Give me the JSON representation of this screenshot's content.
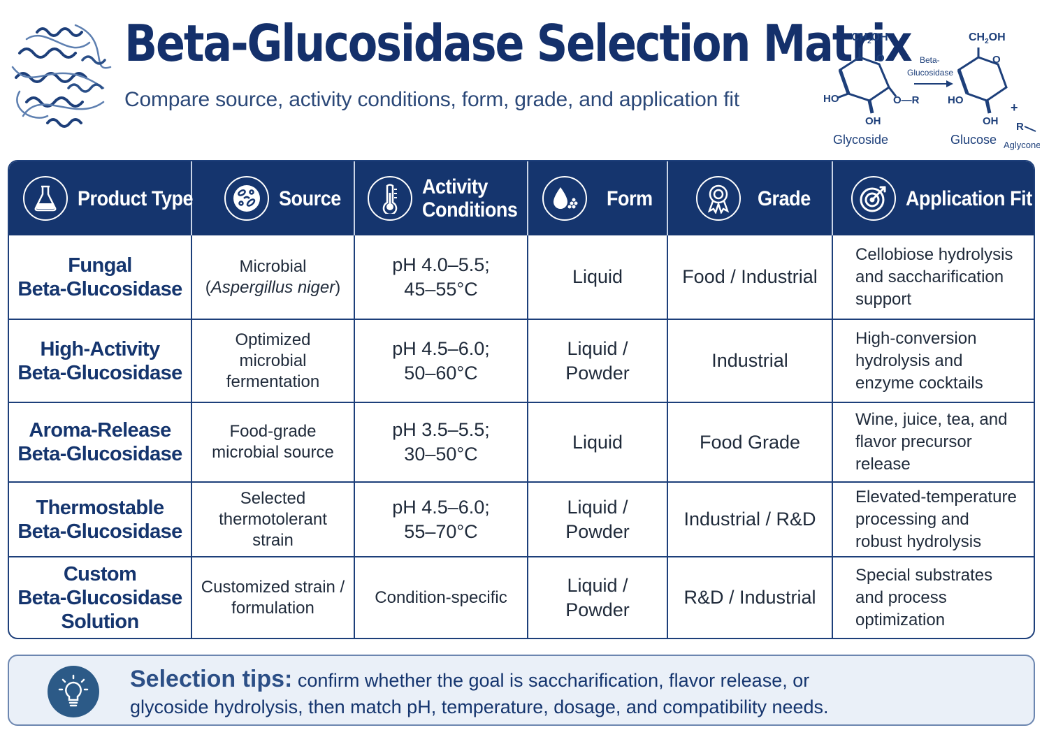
{
  "header": {
    "title": "Beta-Glucosidase Selection Matrix",
    "subtitle": "Compare source, activity conditions, form, grade, and application fit",
    "reaction": {
      "substrate": "Glycoside",
      "product": "Glucose",
      "enzyme_line1": "Beta-",
      "enzyme_line2": "Glucosidase",
      "aglycone": "Aglycone",
      "ch2oh": "CH",
      "ch2oh_sub": "2",
      "ch2oh_end": "OH",
      "ring_o": "O",
      "ho": "HO",
      "oh": "OH",
      "or": "O—R",
      "plus": "+",
      "r": "R"
    }
  },
  "columns": [
    {
      "label": "Product Type",
      "icon": "flask-icon"
    },
    {
      "label": "Source",
      "icon": "microbe-dish-icon"
    },
    {
      "label": "Activity Conditions",
      "line1": "Activity",
      "line2": "Conditions",
      "icon": "thermometer-icon"
    },
    {
      "label": "Form",
      "icon": "droplet-powder-icon"
    },
    {
      "label": "Grade",
      "icon": "award-badge-icon"
    },
    {
      "label": "Application Fit",
      "icon": "target-icon"
    }
  ],
  "rows": [
    {
      "product": [
        "Fungal",
        "Beta-Glucosidase"
      ],
      "source_line1": "Microbial",
      "source_open": "(",
      "source_italic": "Aspergillus niger",
      "source_close": ")",
      "conditions": [
        "pH 4.0–5.5;",
        "45–55°C"
      ],
      "form": [
        "Liquid"
      ],
      "grade": "Food / Industrial",
      "fit": [
        "Cellobiose hydrolysis",
        "and saccharification",
        "support"
      ]
    },
    {
      "product": [
        "High-Activity",
        "Beta-Glucosidase"
      ],
      "source": [
        "Optimized",
        "microbial",
        "fermentation"
      ],
      "conditions": [
        "pH 4.5–6.0;",
        "50–60°C"
      ],
      "form": [
        "Liquid /",
        "Powder"
      ],
      "grade": "Industrial",
      "fit": [
        "High-conversion",
        "hydrolysis and",
        "enzyme cocktails"
      ]
    },
    {
      "product": [
        "Aroma-Release",
        "Beta-Glucosidase"
      ],
      "source": [
        "Food-grade",
        "microbial source"
      ],
      "conditions": [
        "pH 3.5–5.5;",
        "30–50°C"
      ],
      "form": [
        "Liquid"
      ],
      "grade": "Food Grade",
      "fit": [
        "Wine, juice, tea, and",
        "flavor precursor",
        "release"
      ]
    },
    {
      "product": [
        "Thermostable",
        "Beta-Glucosidase"
      ],
      "source": [
        "Selected",
        "thermotolerant",
        "strain"
      ],
      "conditions": [
        "pH 4.5–6.0;",
        "55–70°C"
      ],
      "form": [
        "Liquid /",
        "Powder"
      ],
      "grade": "Industrial / R&D",
      "fit": [
        "Elevated-temperature",
        "processing and",
        "robust hydrolysis"
      ]
    },
    {
      "product": [
        "Custom",
        "Beta-Glucosidase",
        "Solution"
      ],
      "source": [
        "Customized strain /",
        "formulation"
      ],
      "conditions": [
        "Condition-specific"
      ],
      "form": [
        "Liquid /",
        "Powder"
      ],
      "grade": "R&D / Industrial",
      "fit": [
        "Special substrates",
        "and process",
        "optimization"
      ]
    }
  ],
  "tips": {
    "label": "Selection tips:",
    "text_line1": "confirm whether the goal is saccharification, flavor release, or",
    "text_line2": "glycoside hydrolysis, then match pH, temperature, dosage, and compatibility needs.",
    "icon": "lightbulb-icon"
  }
}
